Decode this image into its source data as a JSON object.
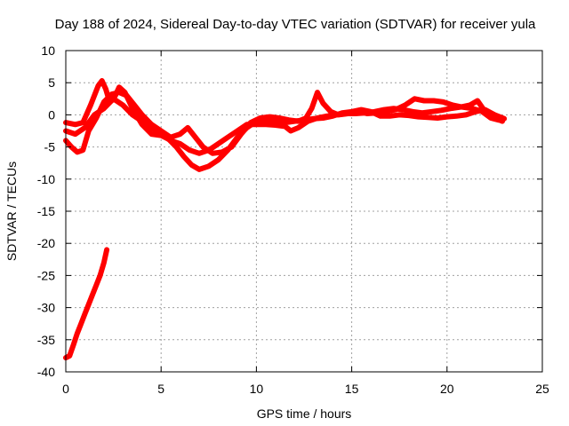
{
  "chart_data": {
    "type": "line",
    "title": "Day 188 of 2024, Sidereal Day-to-day VTEC variation (SDTVAR) for receiver yula",
    "xlabel": "GPS time / hours",
    "ylabel": "SDTVAR / TECUs",
    "xlim": [
      0,
      25
    ],
    "ylim": [
      -40,
      10
    ],
    "xticks": [
      "0",
      "5",
      "10",
      "15",
      "20",
      "25"
    ],
    "yticks": [
      "10",
      "5",
      "0",
      "-5",
      "-10",
      "-15",
      "-20",
      "-25",
      "-30",
      "-35",
      "-40"
    ],
    "grid": true,
    "series_color": "#ff0000",
    "series": [
      {
        "name": "track-1",
        "points": [
          [
            0,
            -1.2
          ],
          [
            0.5,
            -1.5
          ],
          [
            0.9,
            -1.2
          ],
          [
            1.3,
            1.5
          ],
          [
            1.7,
            4.5
          ],
          [
            1.9,
            5.3
          ],
          [
            2.1,
            4.0
          ],
          [
            2.3,
            2.0
          ],
          [
            2.6,
            3.0
          ],
          [
            2.8,
            4.3
          ],
          [
            3.1,
            3.5
          ],
          [
            3.5,
            1.0
          ],
          [
            4.0,
            -1.5
          ],
          [
            4.5,
            -3.0
          ],
          [
            5.0,
            -3.2
          ],
          [
            5.4,
            -3.8
          ],
          [
            5.8,
            -5.0
          ],
          [
            6.2,
            -6.5
          ],
          [
            6.6,
            -7.8
          ],
          [
            7.0,
            -8.5
          ],
          [
            7.5,
            -8.0
          ],
          [
            8.0,
            -7.0
          ],
          [
            8.5,
            -5.5
          ],
          [
            9.0,
            -3.5
          ],
          [
            9.5,
            -2.0
          ],
          [
            10.0,
            -1.0
          ],
          [
            10.5,
            -0.8
          ],
          [
            11.0,
            -0.8
          ],
          [
            11.5,
            -1.2
          ],
          [
            12.0,
            -1.0
          ],
          [
            12.5,
            -0.8
          ],
          [
            13.0,
            -0.6
          ],
          [
            13.5,
            -0.5
          ],
          [
            14.0,
            -0.2
          ],
          [
            14.5,
            0.3
          ],
          [
            15.0,
            0.5
          ],
          [
            15.5,
            0.8
          ],
          [
            16.0,
            0.5
          ],
          [
            16.5,
            -0.2
          ],
          [
            17.0,
            -0.2
          ],
          [
            17.5,
            0.0
          ],
          [
            18.0,
            -0.1
          ],
          [
            18.5,
            -0.3
          ],
          [
            19.0,
            -0.4
          ],
          [
            19.5,
            -0.5
          ],
          [
            20.0,
            -0.3
          ],
          [
            20.5,
            -0.2
          ],
          [
            21.0,
            0.0
          ],
          [
            21.5,
            0.5
          ],
          [
            22.0,
            0.8
          ],
          [
            22.5,
            0.0
          ],
          [
            23.0,
            -0.6
          ]
        ]
      },
      {
        "name": "track-2",
        "points": [
          [
            0,
            -4.0
          ],
          [
            0.3,
            -5.0
          ],
          [
            0.6,
            -5.8
          ],
          [
            0.9,
            -5.5
          ],
          [
            1.2,
            -2.5
          ],
          [
            1.6,
            -0.5
          ],
          [
            2.0,
            2.0
          ],
          [
            2.4,
            3.2
          ],
          [
            2.8,
            3.5
          ],
          [
            3.2,
            3.0
          ],
          [
            3.6,
            1.5
          ],
          [
            4.0,
            0.0
          ],
          [
            4.5,
            -1.5
          ],
          [
            5.0,
            -2.5
          ],
          [
            5.5,
            -3.5
          ],
          [
            6.0,
            -3.0
          ],
          [
            6.4,
            -2.0
          ],
          [
            6.8,
            -3.5
          ],
          [
            7.2,
            -5.0
          ],
          [
            7.7,
            -6.0
          ],
          [
            8.2,
            -5.8
          ],
          [
            8.7,
            -5.0
          ],
          [
            9.2,
            -3.0
          ],
          [
            9.7,
            -1.2
          ],
          [
            10.2,
            -0.5
          ],
          [
            10.7,
            -0.3
          ],
          [
            11.2,
            -0.5
          ],
          [
            11.7,
            -0.8
          ],
          [
            12.2,
            -1.0
          ],
          [
            12.6,
            -0.5
          ],
          [
            12.9,
            1.0
          ],
          [
            13.2,
            3.5
          ],
          [
            13.5,
            1.8
          ],
          [
            13.9,
            0.5
          ],
          [
            14.3,
            0.0
          ],
          [
            14.8,
            0.2
          ],
          [
            15.3,
            0.6
          ],
          [
            15.8,
            0.2
          ],
          [
            16.3,
            0.3
          ],
          [
            16.8,
            0.5
          ],
          [
            17.3,
            0.8
          ],
          [
            17.8,
            1.5
          ],
          [
            18.3,
            2.5
          ],
          [
            18.8,
            2.2
          ],
          [
            19.3,
            2.2
          ],
          [
            19.8,
            2.0
          ],
          [
            20.3,
            1.5
          ],
          [
            20.8,
            1.2
          ],
          [
            21.3,
            1.0
          ],
          [
            21.8,
            0.6
          ],
          [
            22.3,
            -0.5
          ],
          [
            22.7,
            -0.8
          ]
        ]
      },
      {
        "name": "track-3",
        "points": [
          [
            0,
            -2.5
          ],
          [
            0.5,
            -3.0
          ],
          [
            1.0,
            -2.0
          ],
          [
            1.5,
            0.0
          ],
          [
            2.0,
            1.0
          ],
          [
            2.5,
            2.5
          ],
          [
            3.0,
            1.5
          ],
          [
            3.5,
            0.0
          ],
          [
            4.0,
            -1.0
          ],
          [
            4.5,
            -2.0
          ],
          [
            5.0,
            -3.0
          ],
          [
            5.5,
            -4.0
          ],
          [
            6.0,
            -4.5
          ],
          [
            6.5,
            -5.5
          ],
          [
            7.0,
            -6.0
          ],
          [
            7.5,
            -5.5
          ],
          [
            8.0,
            -4.5
          ],
          [
            8.5,
            -3.5
          ],
          [
            9.0,
            -2.5
          ],
          [
            9.5,
            -1.5
          ],
          [
            10.0,
            -1.5
          ],
          [
            10.5,
            -1.5
          ],
          [
            11.0,
            -1.6
          ],
          [
            11.5,
            -1.8
          ],
          [
            11.8,
            -2.5
          ],
          [
            12.2,
            -2.0
          ],
          [
            12.7,
            -1.0
          ],
          [
            13.2,
            -0.5
          ],
          [
            13.7,
            -0.2
          ],
          [
            14.2,
            0.0
          ],
          [
            14.7,
            0.2
          ],
          [
            15.2,
            0.2
          ],
          [
            15.7,
            0.3
          ],
          [
            16.2,
            0.5
          ],
          [
            16.7,
            0.8
          ],
          [
            17.2,
            1.0
          ],
          [
            17.7,
            0.8
          ],
          [
            18.2,
            0.5
          ],
          [
            18.7,
            0.3
          ],
          [
            19.2,
            0.5
          ],
          [
            19.7,
            0.7
          ],
          [
            20.2,
            1.0
          ],
          [
            20.7,
            1.2
          ],
          [
            21.2,
            1.5
          ],
          [
            21.6,
            2.2
          ],
          [
            22.0,
            0.5
          ],
          [
            22.5,
            -0.5
          ],
          [
            22.9,
            -1.0
          ]
        ]
      },
      {
        "name": "track-4",
        "points": [
          [
            0,
            -37.8
          ],
          [
            0.2,
            -37.5
          ],
          [
            0.4,
            -35.8
          ],
          [
            0.6,
            -34.0
          ],
          [
            0.8,
            -32.5
          ],
          [
            1.0,
            -31.0
          ],
          [
            1.2,
            -29.5
          ],
          [
            1.4,
            -28.0
          ],
          [
            1.6,
            -26.5
          ],
          [
            1.8,
            -25.0
          ],
          [
            2.0,
            -23.0
          ],
          [
            2.15,
            -21.0
          ]
        ]
      }
    ]
  }
}
